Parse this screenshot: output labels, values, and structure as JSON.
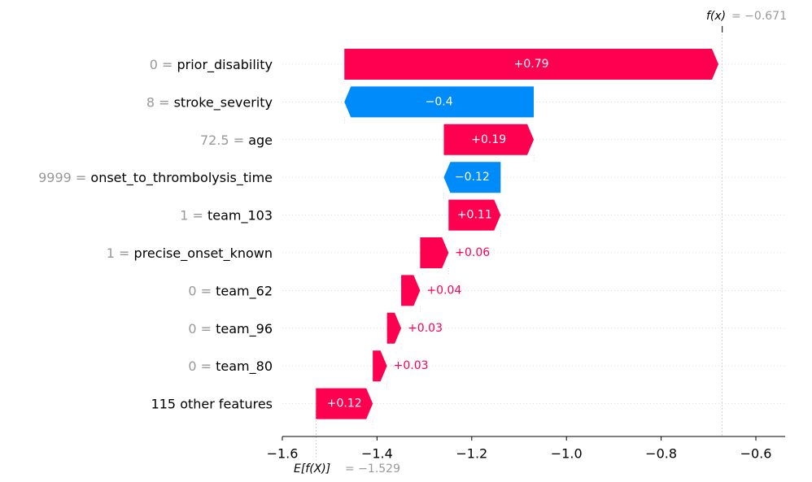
{
  "chart_data": {
    "type": "waterfall",
    "base_value": -1.529,
    "output_value": -0.671,
    "base_label": "E[f(X)]",
    "base_value_text": "= −1.529",
    "output_label": "f(x)",
    "output_value_text": "= −0.671",
    "xlim": [
      -1.6,
      -0.6
    ],
    "xticks": [
      {
        "value": -1.6,
        "label": "−1.6"
      },
      {
        "value": -1.4,
        "label": "−1.4"
      },
      {
        "value": -1.2,
        "label": "−1.2"
      },
      {
        "value": -1.0,
        "label": "−1.0"
      },
      {
        "value": -0.8,
        "label": "−0.8"
      },
      {
        "value": -0.6,
        "label": "−0.6"
      }
    ],
    "features": [
      {
        "value": "0",
        "name": "prior_disability",
        "contribution": 0.79,
        "label": "+0.79"
      },
      {
        "value": "8",
        "name": "stroke_severity",
        "contribution": -0.4,
        "label": "−0.4"
      },
      {
        "value": "72.5",
        "name": "age",
        "contribution": 0.19,
        "label": "+0.19"
      },
      {
        "value": "9999",
        "name": "onset_to_thrombolysis_time",
        "contribution": -0.12,
        "label": "−0.12"
      },
      {
        "value": "1",
        "name": "team_103",
        "contribution": 0.11,
        "label": "+0.11"
      },
      {
        "value": "1",
        "name": "precise_onset_known",
        "contribution": 0.06,
        "label": "+0.06"
      },
      {
        "value": "0",
        "name": "team_62",
        "contribution": 0.04,
        "label": "+0.04"
      },
      {
        "value": "0",
        "name": "team_96",
        "contribution": 0.03,
        "label": "+0.03"
      },
      {
        "value": "0",
        "name": "team_80",
        "contribution": 0.03,
        "label": "+0.03"
      },
      {
        "value": "",
        "name": "115 other features",
        "contribution": 0.12,
        "label": "+0.12"
      }
    ],
    "colors": {
      "positive": "#ff0051",
      "negative": "#008bfb",
      "muted": "#999999"
    }
  }
}
